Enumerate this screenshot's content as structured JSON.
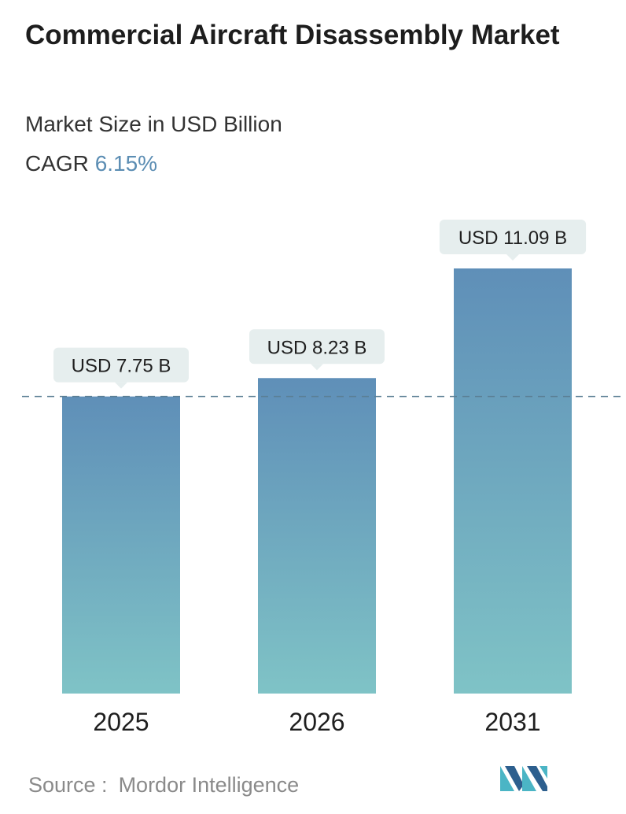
{
  "title": "Commercial Aircraft Disassembly Market",
  "subtitle": "Market Size in USD Billion",
  "cagr": {
    "label": "CAGR",
    "value": "6.15%"
  },
  "source": {
    "label": "Source :",
    "name": "Mordor Intelligence"
  },
  "logo": {
    "icon": "mordor-intelligence-logo-icon"
  },
  "colors": {
    "bar_top": "#5f8fb8",
    "bar_bottom": "#7fc3c6",
    "label_bg": "#e6eeee",
    "dashed_line": "#5b7f94",
    "cagr_value": "#5b8db3",
    "logo_dark": "#2d5f8e",
    "logo_teal": "#4bb5c5"
  },
  "chart_data": {
    "type": "bar",
    "categories": [
      "2025",
      "2026",
      "2031"
    ],
    "values": [
      7.75,
      8.23,
      11.09
    ],
    "data_labels": [
      "USD 7.75 B",
      "USD 8.23 B",
      "USD 11.09 B"
    ],
    "reference_line": 7.75,
    "grid": false,
    "legend": "none",
    "ylim": [
      0,
      11.09
    ]
  }
}
